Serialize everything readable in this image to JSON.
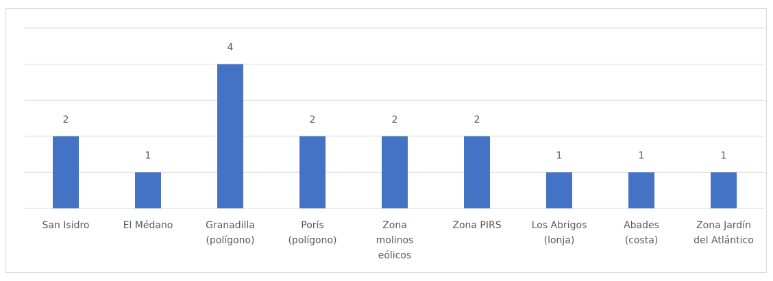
{
  "chart_data": {
    "type": "bar",
    "categories": [
      "San Isidro",
      "El Médano",
      "Granadilla\n(polígono)",
      "Porís\n(polígono)",
      "Zona\nmolinos\neólicos",
      "Zona PIRS",
      "Los Abrigos\n(lonja)",
      "Abades\n(costa)",
      "Zona Jardín\ndel Atlántico"
    ],
    "values": [
      2,
      1,
      4,
      2,
      2,
      2,
      1,
      1,
      1
    ],
    "color": "#4472c4",
    "ylim": [
      0,
      5
    ],
    "yticks": [
      0,
      1,
      2,
      3,
      4,
      5
    ],
    "grid": true
  }
}
